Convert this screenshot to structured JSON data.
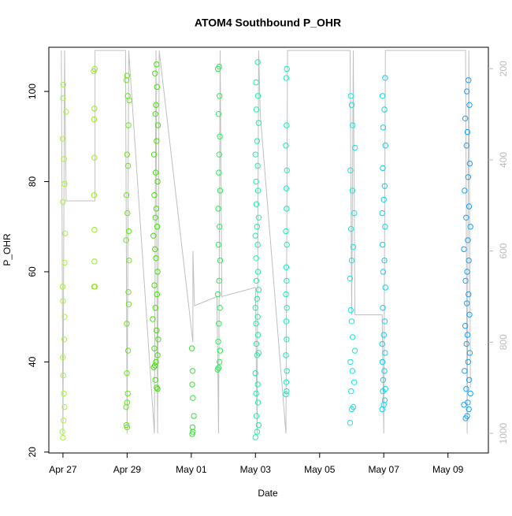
{
  "chart_data": {
    "type": "scatter",
    "title": "ATOM4 Southbound P_OHR",
    "x_label": "Date",
    "y_label": "P_OHR",
    "xlim": [
      -0.44,
      13.26
    ],
    "xticks": [
      {
        "value": 0,
        "label": "Apr 27"
      },
      {
        "value": 2,
        "label": "Apr 29"
      },
      {
        "value": 4,
        "label": "May 01"
      },
      {
        "value": 6,
        "label": "May 03"
      },
      {
        "value": 8,
        "label": "May 05"
      },
      {
        "value": 10,
        "label": "May 07"
      },
      {
        "value": 12,
        "label": "May 09"
      }
    ],
    "ylim": [
      19.8,
      109.8
    ],
    "yticks": [
      20,
      40,
      60,
      80,
      100
    ],
    "y2lim": [
      1043,
      153
    ],
    "y2ticks": [
      200,
      400,
      600,
      800,
      1000
    ],
    "y2_color": "#bbbbbb",
    "series": [
      {
        "type": "line",
        "axis": "y2",
        "color": "#bfbfbf",
        "x": [
          -0.05,
          0.0,
          0.05,
          0.1,
          1.0,
          1.0,
          1.95,
          2.0,
          2.05,
          2.85,
          2.9,
          2.95,
          3.0,
          4.05,
          4.05,
          4.1,
          4.8,
          4.85,
          4.9,
          4.95,
          6.0,
          6.05,
          6.1,
          6.15,
          6.95,
          7.0,
          8.95,
          9.0,
          9.05,
          9.1,
          9.95,
          10.0,
          10.05,
          12.55,
          12.6,
          12.65,
          12.7
        ],
        "values": [
          160,
          1000,
          160,
          490,
          490,
          160,
          160,
          1000,
          160,
          1000,
          160,
          1000,
          160,
          800,
          600,
          720,
          700,
          1000,
          160,
          700,
          680,
          1000,
          160,
          300,
          1000,
          160,
          160,
          740,
          160,
          740,
          740,
          1000,
          160,
          160,
          1000,
          160,
          900
        ]
      },
      {
        "color": "#a6f23a",
        "x": [
          0.0,
          -0.02,
          0.02,
          0.05,
          0.03,
          0.01,
          0.0,
          0.04,
          0.05,
          0.0,
          -0.01,
          0.05,
          0.07,
          0.0,
          0.05,
          0.03,
          -0.01,
          0.1,
          0.0,
          0.01
        ],
        "values": [
          23.2,
          24.5,
          27,
          30,
          33,
          37,
          41,
          45,
          50,
          53.5,
          56.7,
          62,
          68.5,
          75.5,
          79.5,
          85,
          89.5,
          95.5,
          98.5,
          101.5
        ]
      },
      {
        "color": "#99e62e",
        "x": [
          0.97,
          1.0,
          0.98,
          0.98,
          0.97,
          0.98,
          0.97,
          0.98,
          0.96,
          0.99
        ],
        "values": [
          56.7,
          56.7,
          62.3,
          69.3,
          77,
          85.3,
          93.8,
          96.2,
          104.5,
          105
        ]
      },
      {
        "color": "#66e61a",
        "x": [
          2.0,
          1.98,
          1.97,
          2.0,
          2.02,
          1.99,
          2.03,
          1.99,
          2.05,
          2.04,
          2.06,
          1.97,
          2.05,
          2.01,
          1.98,
          2.03,
          2.0,
          2.04,
          2.07,
          2.02,
          1.98,
          2.0
        ],
        "values": [
          25.5,
          26,
          30,
          31,
          33,
          37.5,
          42.5,
          48.5,
          52.8,
          55.5,
          62.5,
          67,
          69,
          73,
          77,
          83.5,
          86,
          92.5,
          98,
          99,
          102.5,
          103.5
        ]
      },
      {
        "color": "#40e000",
        "x": [
          2.95,
          2.92,
          2.88,
          2.83,
          2.87,
          2.9,
          2.95,
          2.85,
          2.97,
          2.92,
          2.8,
          2.88,
          2.93,
          2.85,
          2.95,
          2.9,
          2.87,
          2.82,
          2.94,
          2.88,
          2.91,
          2.85,
          2.95,
          2.89,
          2.84,
          2.92,
          2.96,
          2.88,
          2.9,
          2.93,
          2.87,
          2.92
        ],
        "values": [
          34,
          34.3,
          36,
          38.8,
          39.2,
          40,
          41.5,
          43,
          45,
          47,
          49.5,
          52,
          55,
          57,
          60,
          63,
          65,
          68,
          70,
          72,
          74,
          77,
          80,
          82,
          86,
          89,
          92.5,
          95,
          97,
          101,
          104,
          106
        ]
      },
      {
        "color": "#2ee62e",
        "x": [
          4.03,
          4.05,
          4.04,
          4.08,
          4.05,
          4.03,
          4.04,
          4.02
        ],
        "values": [
          24,
          24.5,
          25.5,
          28,
          32,
          35,
          38,
          43
        ]
      },
      {
        "color": "#26ee55",
        "x": [
          4.82,
          4.85,
          4.88,
          4.9,
          4.84,
          4.86,
          4.89,
          4.83,
          4.87,
          4.9,
          4.85,
          4.88,
          4.84,
          4.9,
          4.86,
          4.87,
          4.89,
          4.85,
          4.88,
          4.83,
          4.87
        ],
        "values": [
          38.3,
          38.7,
          40,
          42.5,
          44.5,
          48.5,
          52,
          55,
          58,
          62.5,
          66,
          70,
          74,
          78,
          82,
          86,
          90,
          95,
          99,
          105,
          105.5
        ]
      },
      {
        "color": "#1aeeaa",
        "x": [
          6.0,
          6.05,
          6.1,
          6.03,
          6.08,
          6.02,
          6.07,
          6.0,
          6.05,
          6.1,
          6.03,
          6.08,
          6.02,
          6.07,
          6.0,
          6.05,
          6.1,
          6.03,
          6.08,
          6.02,
          6.07,
          6.0,
          6.05,
          6.1,
          6.03,
          6.08,
          6.02,
          6.07,
          6.0,
          6.05,
          6.1,
          6.03,
          6.08,
          6.02,
          6.07
        ],
        "values": [
          23.3,
          24.5,
          26,
          28,
          31,
          33,
          35,
          37.5,
          41.5,
          42,
          44,
          46,
          48.5,
          50,
          52,
          54,
          56,
          58,
          60,
          63,
          66,
          68,
          70,
          72,
          75,
          78,
          80,
          83.5,
          86,
          89,
          93,
          96,
          99,
          102,
          106.5
        ]
      },
      {
        "color": "#10eebb",
        "x": [
          6.95,
          6.97,
          6.96,
          6.98,
          6.95,
          6.97,
          6.96,
          6.98,
          6.95,
          6.97,
          6.96,
          6.98,
          6.95,
          6.97,
          6.96,
          6.98,
          6.95,
          6.97,
          6.96,
          6.98
        ],
        "values": [
          32.8,
          33.5,
          35.5,
          38,
          41.5,
          45,
          49,
          52,
          55,
          58,
          61,
          66,
          69,
          74,
          78.5,
          82.5,
          88,
          92.5,
          103,
          105
        ]
      },
      {
        "color": "#10e8e0",
        "x": [
          8.95,
          9.0,
          9.05,
          8.98,
          9.08,
          9.02,
          8.96,
          9.1,
          9.03,
          9.0,
          8.97,
          8.95,
          9.0,
          9.05,
          8.98,
          9.08,
          9.02,
          8.96,
          9.1,
          9.03,
          9.0,
          8.97
        ],
        "values": [
          26.5,
          29.5,
          30,
          33.5,
          35.5,
          38,
          40,
          42.5,
          45.5,
          49,
          51.5,
          58.5,
          62.5,
          65.5,
          69.5,
          73,
          78,
          82.5,
          87.5,
          92.5,
          97,
          99
        ]
      },
      {
        "color": "#10d0f0",
        "x": [
          9.95,
          10.0,
          10.03,
          9.97,
          10.05,
          9.98,
          10.02,
          9.96,
          10.04,
          9.95,
          10.0,
          10.03,
          9.97,
          10.05,
          9.98,
          10.02,
          9.96,
          10.04,
          9.95,
          10.0,
          10.03,
          9.97,
          10.05,
          9.98,
          10.02,
          9.96,
          10.04
        ],
        "values": [
          29.5,
          30.5,
          31.5,
          33.5,
          34,
          36,
          38,
          40,
          42,
          44,
          46,
          49,
          52,
          56.5,
          60,
          62.5,
          66,
          70,
          73,
          76,
          79,
          83,
          88,
          92,
          96,
          99,
          103
        ]
      },
      {
        "color": "#1aa0f8",
        "x": [
          12.55,
          12.6,
          12.65,
          12.5,
          12.62,
          12.7,
          12.57,
          12.66,
          12.52,
          12.63,
          12.68,
          12.58,
          12.61,
          12.54,
          12.67,
          12.59,
          12.64,
          12.55,
          12.6,
          12.65,
          12.5,
          12.62,
          12.7,
          12.57,
          12.66,
          12.52,
          12.63,
          12.68,
          12.58,
          12.61,
          12.54,
          12.67,
          12.59,
          12.64
        ],
        "values": [
          27.5,
          28,
          29.5,
          30.5,
          31,
          33,
          34,
          36,
          38,
          40,
          42,
          44,
          46,
          48,
          50.5,
          53,
          55,
          58,
          60,
          62.5,
          65,
          67,
          70,
          72,
          74.5,
          78,
          81,
          84,
          88,
          91,
          94,
          97,
          100,
          102.5
        ]
      }
    ]
  }
}
